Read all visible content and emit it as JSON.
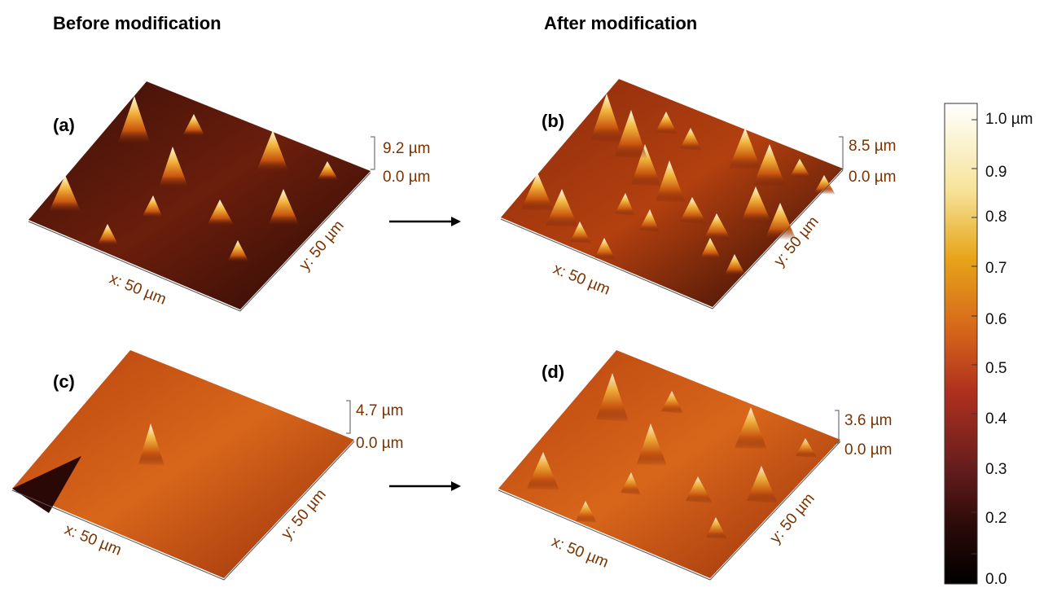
{
  "headers": {
    "before": "Before modification",
    "after": "After modification"
  },
  "panels": [
    {
      "label": "(a)",
      "z_max": "9.2 µm",
      "z_min": "0.0 µm",
      "x_axis": "x: 50 µm",
      "y_axis": "y: 50 µm"
    },
    {
      "label": "(b)",
      "z_max": "8.5 µm",
      "z_min": "0.0 µm",
      "x_axis": "x: 50 µm",
      "y_axis": "y: 50 µm"
    },
    {
      "label": "(c)",
      "z_max": "4.7 µm",
      "z_min": "0.0 µm",
      "x_axis": "x: 50 µm",
      "y_axis": "y: 50 µm"
    },
    {
      "label": "(d)",
      "z_max": "3.6 µm",
      "z_min": "0.0 µm",
      "x_axis": "x: 50 µm",
      "y_axis": "y: 50 µm"
    }
  ],
  "colorbar": {
    "labels": [
      "1.0 µm",
      "0.9",
      "0.8",
      "0.7",
      "0.6",
      "0.5",
      "0.4",
      "0.3",
      "0.2",
      "0.0"
    ]
  }
}
